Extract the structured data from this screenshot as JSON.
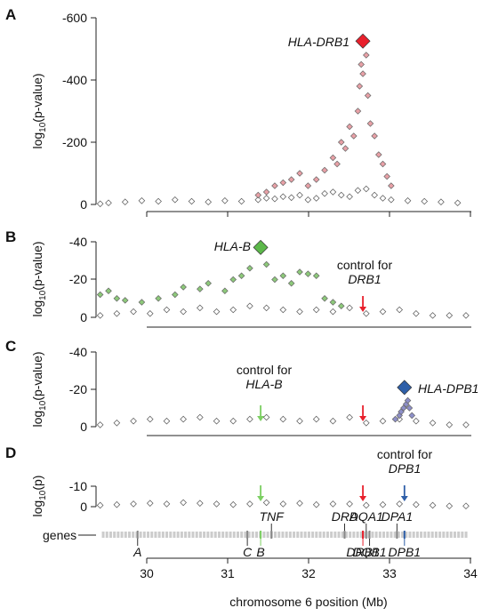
{
  "chart_data": [
    {
      "panel": "A",
      "type": "scatter",
      "ylabel": "log10(p-value)",
      "y_ticks": [
        "-600",
        "-400",
        "-200",
        "0"
      ],
      "ylim": [
        0,
        -600
      ],
      "annotations": [
        {
          "text": "HLA-DRB1",
          "italic": true
        }
      ],
      "series": [
        {
          "name": "background",
          "color": "#555555",
          "x": [
            29.5,
            29.6,
            29.8,
            30.0,
            30.2,
            30.4,
            30.6,
            30.8,
            31.0,
            31.2,
            31.4,
            31.5,
            31.6,
            31.7,
            31.8,
            31.9,
            32.0,
            32.1,
            32.2,
            32.3,
            32.4,
            32.5,
            32.6,
            32.7,
            32.8,
            32.9,
            33.0,
            33.2,
            33.4,
            33.6,
            33.8
          ],
          "values": [
            -2,
            -5,
            -8,
            -12,
            -10,
            -15,
            -10,
            -8,
            -12,
            -10,
            -15,
            -20,
            -18,
            -25,
            -22,
            -30,
            -15,
            -20,
            -35,
            -40,
            -30,
            -25,
            -45,
            -50,
            -30,
            -20,
            -15,
            -12,
            -10,
            -8,
            -5
          ]
        },
        {
          "name": "highlight",
          "color": "#e8a0a6",
          "x": [
            31.4,
            31.5,
            31.6,
            31.7,
            31.8,
            31.9,
            32.0,
            32.1,
            32.2,
            32.3,
            32.35,
            32.4,
            32.45,
            32.5,
            32.55,
            32.6,
            32.62,
            32.64,
            32.66,
            32.7,
            32.72,
            32.75,
            32.8,
            32.85,
            32.9,
            32.95,
            33.0
          ],
          "values": [
            -30,
            -40,
            -60,
            -70,
            -80,
            -100,
            -60,
            -80,
            -110,
            -150,
            -130,
            -200,
            -180,
            -250,
            -220,
            -300,
            -380,
            -450,
            -420,
            -480,
            -350,
            -260,
            -220,
            -160,
            -130,
            -90,
            -60
          ]
        },
        {
          "name": "lead",
          "color": "#e8202c",
          "x": [
            32.66
          ],
          "values": [
            -525
          ]
        }
      ]
    },
    {
      "panel": "B",
      "type": "scatter",
      "ylabel": "log10(p-value)",
      "y_ticks": [
        "-40",
        "-20",
        "0"
      ],
      "ylim": [
        0,
        -40
      ],
      "annotations": [
        {
          "text": "HLA-B",
          "italic": true
        },
        {
          "text": "control for"
        },
        {
          "text": "DRB1",
          "italic": true
        }
      ],
      "arrows": [
        {
          "x": 32.66,
          "color": "#e8202c"
        }
      ],
      "series": [
        {
          "name": "background",
          "color": "#555555",
          "x": [
            29.5,
            29.7,
            29.9,
            30.1,
            30.3,
            30.5,
            30.7,
            30.9,
            31.1,
            31.3,
            31.5,
            31.7,
            31.9,
            32.1,
            32.3,
            32.5,
            32.7,
            32.9,
            33.1,
            33.3,
            33.5,
            33.7,
            33.9
          ],
          "values": [
            -1,
            -2,
            -3,
            -2,
            -4,
            -3,
            -5,
            -3,
            -4,
            -6,
            -5,
            -4,
            -3,
            -4,
            -3,
            -5,
            -2,
            -3,
            -4,
            -2,
            -1,
            -1,
            -1
          ]
        },
        {
          "name": "highlight",
          "color": "#8dc97a",
          "x": [
            29.5,
            29.6,
            29.7,
            29.8,
            30.0,
            30.2,
            30.4,
            30.5,
            30.7,
            30.8,
            31.0,
            31.1,
            31.2,
            31.3,
            31.5,
            31.6,
            31.7,
            31.8,
            31.9,
            32.0,
            32.1,
            32.2,
            32.3,
            32.4
          ],
          "values": [
            -12,
            -14,
            -10,
            -9,
            -8,
            -10,
            -12,
            -16,
            -15,
            -18,
            -14,
            -20,
            -22,
            -26,
            -28,
            -20,
            -22,
            -18,
            -24,
            -23,
            -22,
            -10,
            -8,
            -6
          ]
        },
        {
          "name": "lead",
          "color": "#5cb84a",
          "x": [
            31.43
          ],
          "values": [
            -37
          ]
        }
      ]
    },
    {
      "panel": "C",
      "type": "scatter",
      "ylabel": "log10(p-value)",
      "y_ticks": [
        "-40",
        "-20",
        "0"
      ],
      "ylim": [
        0,
        -40
      ],
      "annotations": [
        {
          "text": "control for"
        },
        {
          "text": "HLA-B",
          "italic": true
        },
        {
          "text": "HLA-DPB1",
          "italic": true
        }
      ],
      "arrows": [
        {
          "x": 31.43,
          "color": "#7ccf62"
        },
        {
          "x": 32.66,
          "color": "#e8202c"
        }
      ],
      "series": [
        {
          "name": "background",
          "color": "#555555",
          "x": [
            29.5,
            29.7,
            29.9,
            30.1,
            30.3,
            30.5,
            30.7,
            30.9,
            31.1,
            31.3,
            31.5,
            31.7,
            31.9,
            32.1,
            32.3,
            32.5,
            32.7,
            32.9,
            33.1,
            33.3,
            33.5,
            33.7,
            33.9
          ],
          "values": [
            -1,
            -2,
            -3,
            -4,
            -3,
            -4,
            -5,
            -3,
            -3,
            -4,
            -5,
            -4,
            -3,
            -4,
            -3,
            -5,
            -2,
            -3,
            -4,
            -3,
            -2,
            -1,
            -1
          ]
        },
        {
          "name": "highlight",
          "color": "#8d8fc9",
          "x": [
            33.05,
            33.1,
            33.12,
            33.15,
            33.18,
            33.2,
            33.22,
            33.25
          ],
          "values": [
            -4,
            -6,
            -8,
            -10,
            -12,
            -14,
            -10,
            -6
          ]
        },
        {
          "name": "lead",
          "color": "#2e5fa8",
          "x": [
            33.16
          ],
          "values": [
            -21
          ]
        }
      ]
    },
    {
      "panel": "D",
      "type": "scatter",
      "ylabel": "log10(p)",
      "y_ticks": [
        "-10",
        "0"
      ],
      "ylim": [
        0,
        -15
      ],
      "annotations": [
        {
          "text": "control for"
        },
        {
          "text": "DPB1",
          "italic": true
        }
      ],
      "arrows": [
        {
          "x": 31.43,
          "color": "#7ccf62"
        },
        {
          "x": 32.66,
          "color": "#e8202c"
        },
        {
          "x": 33.16,
          "color": "#2e5fa8"
        }
      ],
      "series": [
        {
          "name": "background",
          "color": "#555555",
          "x": [
            29.5,
            29.7,
            29.9,
            30.1,
            30.3,
            30.5,
            30.7,
            30.9,
            31.1,
            31.3,
            31.5,
            31.7,
            31.9,
            32.1,
            32.3,
            32.5,
            32.7,
            32.9,
            33.1,
            33.3,
            33.5,
            33.7,
            33.9
          ],
          "values": [
            -1,
            -1.5,
            -2,
            -2.5,
            -2,
            -3,
            -2.5,
            -2,
            -1.5,
            -2,
            -3,
            -2,
            -2.5,
            -1.5,
            -2,
            -2,
            -1,
            -1.5,
            -2,
            -1.5,
            -1,
            -0.5,
            -0.5
          ]
        }
      ],
      "genes_track": {
        "label": "genes",
        "genes_above": [
          {
            "name": "TNF",
            "x": 31.56
          },
          {
            "name": "DRA",
            "x": 32.44
          },
          {
            "name": "DQA1",
            "x": 32.7
          },
          {
            "name": "DPA1",
            "x": 33.07
          }
        ],
        "genes_below": [
          {
            "name": "A",
            "x": 29.95
          },
          {
            "name": "C",
            "x": 31.27
          },
          {
            "name": "B",
            "x": 31.43
          },
          {
            "name": "DRB1",
            "x": 32.66
          },
          {
            "name": "DQB1",
            "x": 32.74
          },
          {
            "name": "DPB1",
            "x": 33.16
          }
        ]
      }
    }
  ],
  "x_axis": {
    "label": "chromosome 6 position (Mb)",
    "ticks": [
      "30",
      "31",
      "32",
      "33",
      "34"
    ],
    "xlim": [
      29.45,
      34.05
    ]
  }
}
